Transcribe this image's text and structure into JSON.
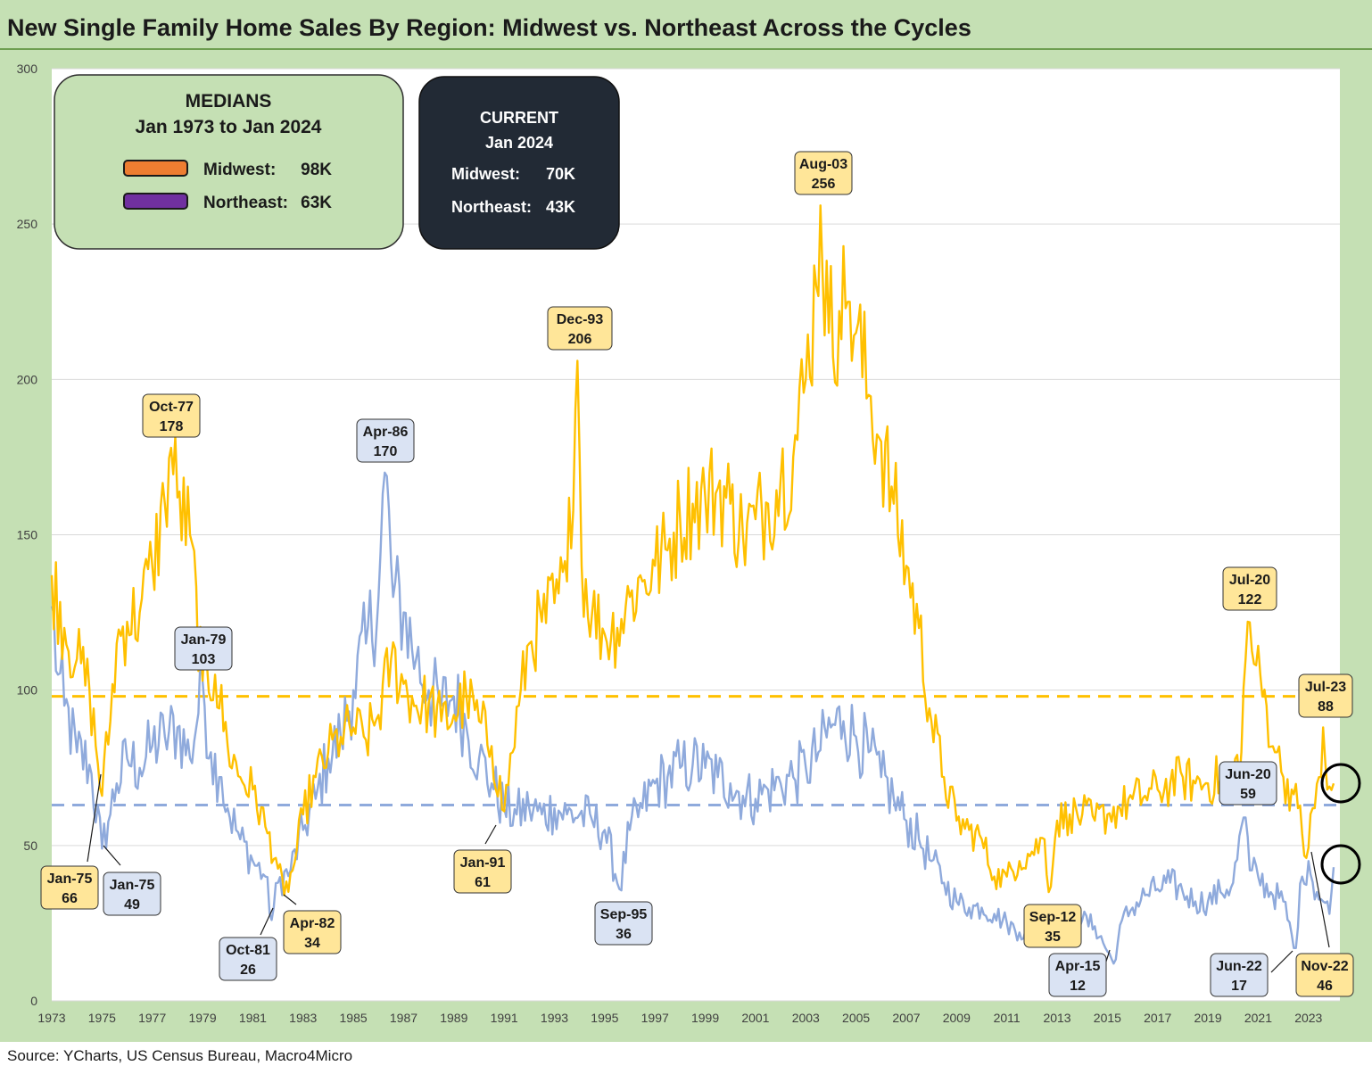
{
  "title": "New Single Family Home Sales By Region: Midwest vs. Northeast Across the Cycles",
  "source": "Source: YCharts, US Census Bureau, Macro4Micro",
  "medians_box": {
    "heading1": "MEDIANS",
    "heading2": "Jan 1973 to Jan 2024",
    "midwest": "Midwest:",
    "midwest_value": "98K",
    "northeast": "Northeast:",
    "northeast_value": "63K"
  },
  "current_box": {
    "heading1": "CURRENT",
    "heading2": "Jan 2024",
    "midwest": "Midwest:",
    "midwest_value": "70K",
    "northeast": "Northeast:",
    "northeast_value": "43K"
  },
  "colors": {
    "midwest": "#ffc000",
    "northeast": "#8faadc",
    "midwest_swatch": "#ed7d31",
    "northeast_swatch": "#7030a0",
    "frame": "#c5e0b4",
    "mw_label_fill": "#ffe699",
    "ne_label_fill": "#dae3f3",
    "current_box": "#222a35"
  },
  "chart_data": {
    "type": "line",
    "ylim": [
      0,
      300
    ],
    "y_ticks": [
      0,
      50,
      100,
      150,
      200,
      250,
      300
    ],
    "x_ticks": [
      "1973",
      "1975",
      "1977",
      "1979",
      "1981",
      "1983",
      "1985",
      "1987",
      "1989",
      "1991",
      "1993",
      "1995",
      "1997",
      "1999",
      "2001",
      "2003",
      "2005",
      "2007",
      "2009",
      "2011",
      "2013",
      "2015",
      "2017",
      "2019",
      "2021",
      "2023"
    ],
    "x_range": [
      1973.0,
      2024.25
    ],
    "grid": true,
    "medians": [
      {
        "series": "Midwest",
        "value": 98
      },
      {
        "series": "Northeast",
        "value": 63
      }
    ],
    "series": [
      {
        "name": "Midwest",
        "anchors": [
          [
            1973.0,
            137
          ],
          [
            1973.5,
            120
          ],
          [
            1974.0,
            110
          ],
          [
            1974.5,
            100
          ],
          [
            1975.0,
            66
          ],
          [
            1975.3,
            90
          ],
          [
            1975.6,
            115
          ],
          [
            1976.0,
            122
          ],
          [
            1976.5,
            125
          ],
          [
            1977.0,
            140
          ],
          [
            1977.5,
            160
          ],
          [
            1977.75,
            178
          ],
          [
            1978.0,
            162
          ],
          [
            1978.5,
            150
          ],
          [
            1979.0,
            103
          ],
          [
            1979.5,
            105
          ],
          [
            1980.0,
            82
          ],
          [
            1980.5,
            72
          ],
          [
            1981.0,
            68
          ],
          [
            1981.5,
            56
          ],
          [
            1981.9,
            46
          ],
          [
            1982.25,
            34
          ],
          [
            1982.6,
            42
          ],
          [
            1983.0,
            60
          ],
          [
            1983.5,
            72
          ],
          [
            1984.0,
            80
          ],
          [
            1984.5,
            85
          ],
          [
            1985.0,
            88
          ],
          [
            1985.5,
            84
          ],
          [
            1986.0,
            92
          ],
          [
            1986.5,
            110
          ],
          [
            1987.0,
            102
          ],
          [
            1987.5,
            95
          ],
          [
            1988.0,
            96
          ],
          [
            1988.5,
            90
          ],
          [
            1989.0,
            92
          ],
          [
            1989.5,
            98
          ],
          [
            1990.0,
            90
          ],
          [
            1990.5,
            82
          ],
          [
            1991.0,
            61
          ],
          [
            1991.3,
            80
          ],
          [
            1991.6,
            95
          ],
          [
            1992.0,
            115
          ],
          [
            1992.5,
            122
          ],
          [
            1993.0,
            128
          ],
          [
            1993.5,
            135
          ],
          [
            1993.92,
            206
          ],
          [
            1994.1,
            140
          ],
          [
            1994.5,
            125
          ],
          [
            1995.0,
            118
          ],
          [
            1995.5,
            120
          ],
          [
            1996.0,
            130
          ],
          [
            1996.5,
            135
          ],
          [
            1997.0,
            140
          ],
          [
            1997.5,
            145
          ],
          [
            1998.0,
            155
          ],
          [
            1998.5,
            160
          ],
          [
            1999.0,
            162
          ],
          [
            1999.5,
            165
          ],
          [
            2000.0,
            160
          ],
          [
            2000.5,
            150
          ],
          [
            2001.0,
            155
          ],
          [
            2001.5,
            160
          ],
          [
            2002.0,
            168
          ],
          [
            2002.5,
            175
          ],
          [
            2003.0,
            200
          ],
          [
            2003.4,
            230
          ],
          [
            2003.58,
            256
          ],
          [
            2003.9,
            215
          ],
          [
            2004.3,
            222
          ],
          [
            2004.7,
            225
          ],
          [
            2005.0,
            215
          ],
          [
            2005.5,
            195
          ],
          [
            2006.0,
            180
          ],
          [
            2006.5,
            160
          ],
          [
            2007.0,
            140
          ],
          [
            2007.5,
            120
          ],
          [
            2008.0,
            90
          ],
          [
            2008.5,
            72
          ],
          [
            2009.0,
            58
          ],
          [
            2009.5,
            55
          ],
          [
            2010.0,
            52
          ],
          [
            2010.5,
            40
          ],
          [
            2011.0,
            40
          ],
          [
            2011.5,
            45
          ],
          [
            2012.0,
            48
          ],
          [
            2012.5,
            52
          ],
          [
            2012.67,
            35
          ],
          [
            2013.0,
            58
          ],
          [
            2013.5,
            60
          ],
          [
            2014.0,
            60
          ],
          [
            2014.5,
            58
          ],
          [
            2015.0,
            60
          ],
          [
            2015.5,
            62
          ],
          [
            2016.0,
            65
          ],
          [
            2016.5,
            66
          ],
          [
            2017.0,
            68
          ],
          [
            2017.5,
            70
          ],
          [
            2018.0,
            72
          ],
          [
            2018.5,
            70
          ],
          [
            2019.0,
            70
          ],
          [
            2019.5,
            72
          ],
          [
            2020.0,
            72
          ],
          [
            2020.3,
            80
          ],
          [
            2020.5,
            110
          ],
          [
            2020.55,
            122
          ],
          [
            2020.9,
            108
          ],
          [
            2021.3,
            95
          ],
          [
            2021.7,
            80
          ],
          [
            2022.0,
            72
          ],
          [
            2022.3,
            68
          ],
          [
            2022.6,
            62
          ],
          [
            2022.9,
            46
          ],
          [
            2023.2,
            62
          ],
          [
            2023.45,
            72
          ],
          [
            2023.55,
            88
          ],
          [
            2023.75,
            68
          ],
          [
            2024.0,
            70
          ]
        ]
      },
      {
        "name": "Northeast",
        "anchors": [
          [
            1973.0,
            127
          ],
          [
            1973.25,
            105
          ],
          [
            1973.5,
            95
          ],
          [
            1974.0,
            80
          ],
          [
            1974.5,
            76
          ],
          [
            1975.0,
            49
          ],
          [
            1975.3,
            60
          ],
          [
            1975.6,
            70
          ],
          [
            1976.0,
            78
          ],
          [
            1976.5,
            75
          ],
          [
            1977.0,
            82
          ],
          [
            1977.5,
            85
          ],
          [
            1978.0,
            88
          ],
          [
            1978.5,
            78
          ],
          [
            1979.0,
            103
          ],
          [
            1979.3,
            80
          ],
          [
            1979.7,
            72
          ],
          [
            1980.0,
            62
          ],
          [
            1980.5,
            52
          ],
          [
            1981.0,
            45
          ],
          [
            1981.5,
            40
          ],
          [
            1981.75,
            26
          ],
          [
            1982.0,
            38
          ],
          [
            1982.5,
            42
          ],
          [
            1983.0,
            55
          ],
          [
            1983.5,
            65
          ],
          [
            1984.0,
            78
          ],
          [
            1984.5,
            85
          ],
          [
            1985.0,
            100
          ],
          [
            1985.5,
            115
          ],
          [
            1986.0,
            130
          ],
          [
            1986.25,
            170
          ],
          [
            1986.6,
            130
          ],
          [
            1987.0,
            125
          ],
          [
            1987.5,
            110
          ],
          [
            1988.0,
            100
          ],
          [
            1988.5,
            95
          ],
          [
            1989.0,
            98
          ],
          [
            1989.5,
            88
          ],
          [
            1990.0,
            78
          ],
          [
            1990.5,
            70
          ],
          [
            1991.0,
            62
          ],
          [
            1991.5,
            60
          ],
          [
            1992.0,
            62
          ],
          [
            1992.5,
            60
          ],
          [
            1993.0,
            62
          ],
          [
            1993.5,
            60
          ],
          [
            1994.0,
            60
          ],
          [
            1994.5,
            58
          ],
          [
            1995.0,
            55
          ],
          [
            1995.6,
            36
          ],
          [
            1996.0,
            55
          ],
          [
            1996.5,
            62
          ],
          [
            1997.0,
            70
          ],
          [
            1997.5,
            72
          ],
          [
            1998.0,
            75
          ],
          [
            1998.5,
            76
          ],
          [
            1999.0,
            75
          ],
          [
            1999.5,
            72
          ],
          [
            2000.0,
            70
          ],
          [
            2000.5,
            66
          ],
          [
            2001.0,
            65
          ],
          [
            2001.5,
            68
          ],
          [
            2002.0,
            70
          ],
          [
            2002.5,
            72
          ],
          [
            2003.0,
            75
          ],
          [
            2003.5,
            80
          ],
          [
            2004.0,
            88
          ],
          [
            2004.5,
            90
          ],
          [
            2005.0,
            85
          ],
          [
            2005.5,
            80
          ],
          [
            2006.0,
            72
          ],
          [
            2006.5,
            65
          ],
          [
            2007.0,
            58
          ],
          [
            2007.5,
            52
          ],
          [
            2008.0,
            45
          ],
          [
            2008.5,
            38
          ],
          [
            2009.0,
            32
          ],
          [
            2009.5,
            30
          ],
          [
            2010.0,
            30
          ],
          [
            2010.5,
            28
          ],
          [
            2011.0,
            25
          ],
          [
            2011.5,
            22
          ],
          [
            2012.0,
            22
          ],
          [
            2012.5,
            25
          ],
          [
            2013.0,
            27
          ],
          [
            2013.5,
            27
          ],
          [
            2014.0,
            26
          ],
          [
            2014.5,
            24
          ],
          [
            2015.25,
            12
          ],
          [
            2015.6,
            26
          ],
          [
            2016.0,
            30
          ],
          [
            2016.5,
            34
          ],
          [
            2017.0,
            36
          ],
          [
            2017.5,
            38
          ],
          [
            2018.0,
            35
          ],
          [
            2018.5,
            32
          ],
          [
            2019.0,
            32
          ],
          [
            2019.5,
            35
          ],
          [
            2020.0,
            38
          ],
          [
            2020.45,
            59
          ],
          [
            2020.7,
            42
          ],
          [
            2021.0,
            40
          ],
          [
            2021.5,
            35
          ],
          [
            2022.0,
            32
          ],
          [
            2022.45,
            17
          ],
          [
            2022.75,
            40
          ],
          [
            2023.0,
            45
          ],
          [
            2023.3,
            35
          ],
          [
            2023.6,
            32
          ],
          [
            2023.85,
            28
          ],
          [
            2024.0,
            43
          ]
        ]
      }
    ],
    "annotations": [
      {
        "series": "Midwest",
        "date": "Oct-77",
        "value": "178"
      },
      {
        "series": "Northeast",
        "date": "Apr-86",
        "value": "170"
      },
      {
        "series": "Northeast",
        "date": "Jan-79",
        "value": "103"
      },
      {
        "series": "Midwest",
        "date": "Dec-93",
        "value": "206"
      },
      {
        "series": "Midwest",
        "date": "Aug-03",
        "value": "256"
      },
      {
        "series": "Midwest",
        "date": "Jan-75",
        "value": "66"
      },
      {
        "series": "Northeast",
        "date": "Jan-75",
        "value": "49"
      },
      {
        "series": "Northeast",
        "date": "Oct-81",
        "value": "26"
      },
      {
        "series": "Midwest",
        "date": "Apr-82",
        "value": "34"
      },
      {
        "series": "Midwest",
        "date": "Jan-91",
        "value": "61"
      },
      {
        "series": "Northeast",
        "date": "Sep-95",
        "value": "36"
      },
      {
        "series": "Midwest",
        "date": "Sep-12",
        "value": "35"
      },
      {
        "series": "Northeast",
        "date": "Apr-15",
        "value": "12"
      },
      {
        "series": "Midwest",
        "date": "Jul-20",
        "value": "122"
      },
      {
        "series": "Northeast",
        "date": "Jun-20",
        "value": "59"
      },
      {
        "series": "Midwest",
        "date": "Jul-23",
        "value": "88"
      },
      {
        "series": "Northeast",
        "date": "Jun-22",
        "value": "17"
      },
      {
        "series": "Midwest",
        "date": "Nov-22",
        "value": "46"
      }
    ]
  }
}
